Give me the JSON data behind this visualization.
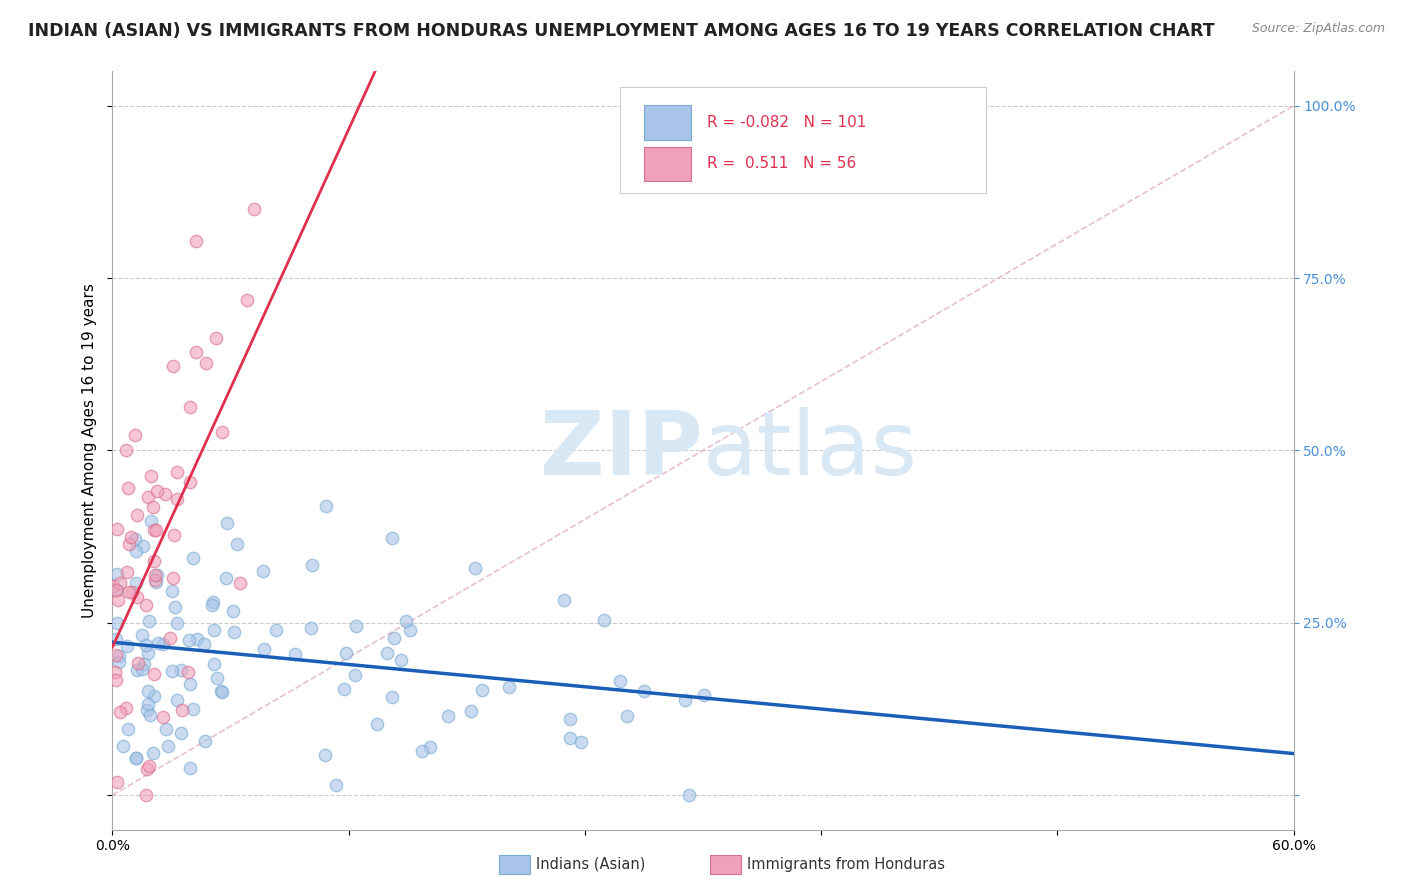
{
  "title": "INDIAN (ASIAN) VS IMMIGRANTS FROM HONDURAS UNEMPLOYMENT AMONG AGES 16 TO 19 YEARS CORRELATION CHART",
  "source": "Source: ZipAtlas.com",
  "ylabel": "Unemployment Among Ages 16 to 19 years",
  "xlim": [
    0.0,
    0.6
  ],
  "ylim": [
    -0.05,
    1.05
  ],
  "plot_ylim": [
    0.0,
    1.0
  ],
  "blue_R": -0.082,
  "blue_N": 101,
  "pink_R": 0.511,
  "pink_N": 56,
  "blue_color": "#a8c4e8",
  "pink_color": "#f0a0b8",
  "blue_edge_color": "#7aaad0",
  "pink_edge_color": "#d87090",
  "blue_line_color": "#1a5eb8",
  "pink_line_color": "#e03050",
  "grid_color": "#cccccc",
  "diag_color": "#c0c0c0",
  "watermark_color": "#d8e8f5",
  "legend_blue_label": "Indians (Asian)",
  "legend_pink_label": "Immigrants from Honduras",
  "title_fontsize": 12.5,
  "axis_label_fontsize": 11,
  "tick_fontsize": 10,
  "right_tick_color": "#4a90d9",
  "marker_size": 80,
  "seed": 7
}
